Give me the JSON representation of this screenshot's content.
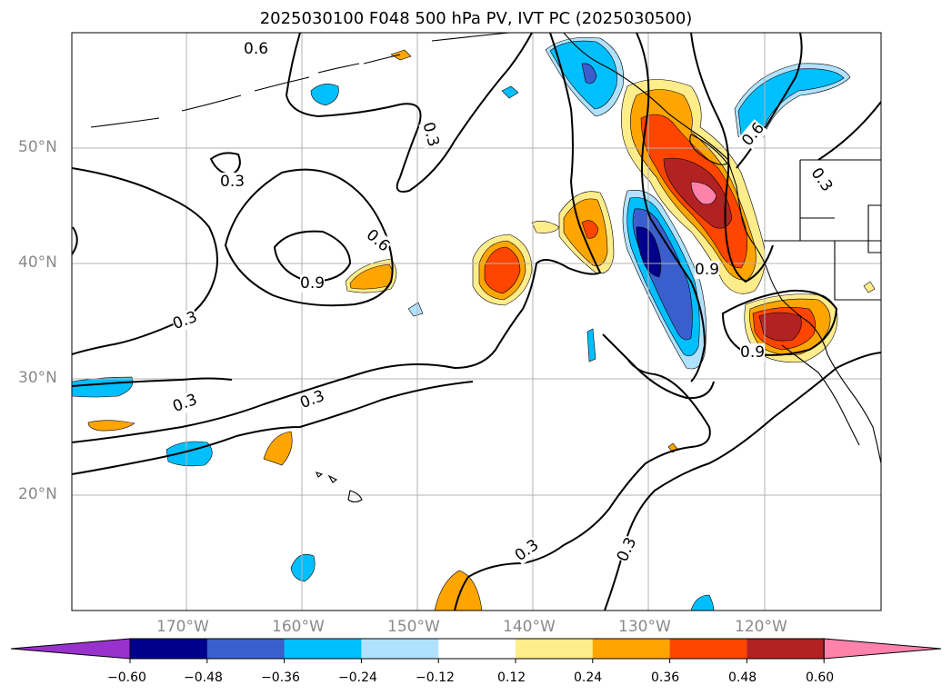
{
  "title": "2025030100 F048 500 hPa PV, IVT PC (2025030500)",
  "lat_labels": [
    "50°N",
    "40°N",
    "30°N",
    "20°N"
  ],
  "lon_labels": [
    "170°W",
    "160°W",
    "150°W",
    "140°W",
    "130°W",
    "120°W"
  ],
  "contour_labels": [
    "0.6",
    "0.3",
    "0.3",
    "0.6",
    "0.9",
    "0.3",
    "0.3",
    "0.3",
    "0.3",
    "0.6",
    "0.3",
    "0.9",
    "0.9",
    "0.3"
  ],
  "colorbar": {
    "ticks": [
      "−0.60",
      "−0.48",
      "−0.36",
      "−0.24",
      "−0.12",
      "0.12",
      "0.24",
      "0.36",
      "0.48",
      "0.60"
    ],
    "colors": [
      "#9932cc",
      "#00008b",
      "#3a5fcd",
      "#00bfff",
      "#b0e2ff",
      "#ffffff",
      "#ffec8b",
      "#ffa500",
      "#ff4500",
      "#b22222",
      "#ff82ab"
    ]
  }
}
